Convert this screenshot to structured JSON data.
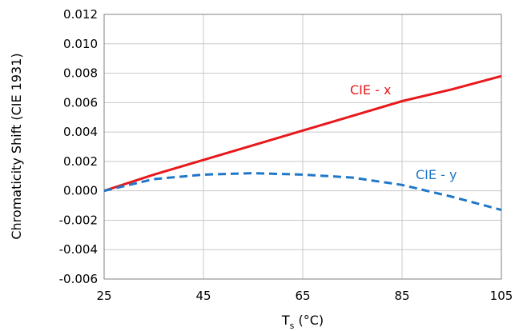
{
  "chart_data": {
    "type": "line",
    "xlabel_main": "T",
    "xlabel_sub": "s",
    "xlabel_rest": " (°C)",
    "ylabel": "Chromaticity Shift (CIE 1931)",
    "xlim": [
      25,
      105
    ],
    "ylim": [
      -0.006,
      0.012
    ],
    "x_ticks": [
      25,
      45,
      65,
      85,
      105
    ],
    "y_ticks": [
      -0.006,
      -0.004,
      -0.002,
      0.0,
      0.002,
      0.004,
      0.006,
      0.008,
      0.01,
      0.012
    ],
    "x_tick_labels": [
      "25",
      "45",
      "65",
      "85",
      "105"
    ],
    "y_tick_labels": [
      "-0.006",
      "-0.004",
      "-0.002",
      "0.000",
      "0.002",
      "0.004",
      "0.006",
      "0.008",
      "0.010",
      "0.012"
    ],
    "grid": true,
    "series": [
      {
        "name": "CIE - x",
        "color": "#e8191c",
        "style": "solid",
        "x": [
          25,
          35,
          45,
          55,
          65,
          75,
          85,
          95,
          105
        ],
        "y": [
          0.0,
          0.0011,
          0.0021,
          0.0031,
          0.0041,
          0.0051,
          0.0061,
          0.0069,
          0.0078
        ]
      },
      {
        "name": "CIE - y",
        "color": "#1f77c8",
        "style": "dashed",
        "x": [
          25,
          35,
          45,
          55,
          65,
          75,
          85,
          95,
          105
        ],
        "y": [
          0.0,
          0.0008,
          0.0011,
          0.0012,
          0.0011,
          0.0009,
          0.0004,
          -0.0004,
          -0.0013
        ]
      }
    ]
  }
}
